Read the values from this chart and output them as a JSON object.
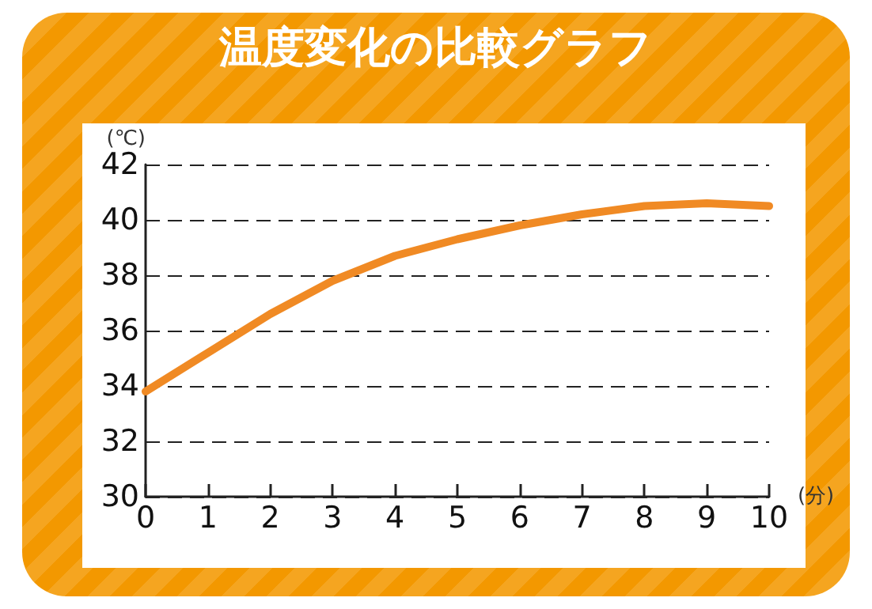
{
  "chart_data": {
    "type": "line",
    "title": "温度変化の比較グラフ",
    "xlabel": "(分)",
    "ylabel": "(℃)",
    "x": [
      0,
      1,
      2,
      3,
      4,
      5,
      6,
      7,
      8,
      9,
      10
    ],
    "series": [
      {
        "color": "#f08a24",
        "values": [
          33.8,
          35.2,
          36.6,
          37.8,
          38.7,
          39.3,
          39.8,
          40.2,
          40.5,
          40.6,
          40.5
        ]
      }
    ],
    "xlim": [
      0,
      10
    ],
    "xticks": [
      0,
      1,
      2,
      3,
      4,
      5,
      6,
      7,
      8,
      9,
      10
    ],
    "ylim": [
      30,
      42
    ],
    "yticks": [
      30,
      32,
      34,
      36,
      38,
      40,
      42
    ],
    "grid": "y",
    "marker": "none",
    "line_style": "solid"
  }
}
